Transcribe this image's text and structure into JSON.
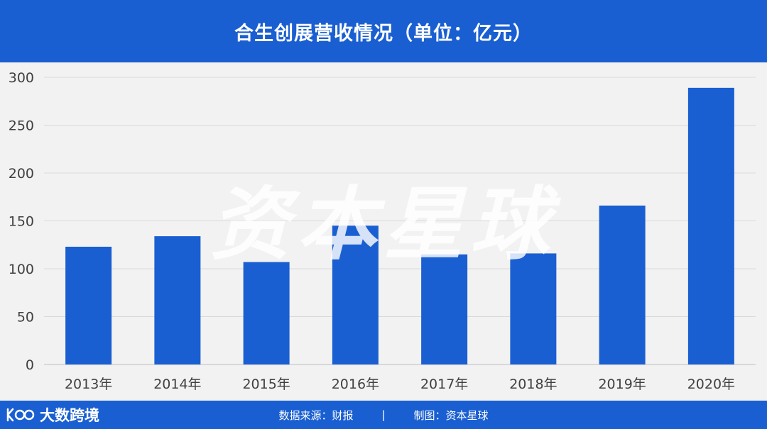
{
  "header": {
    "title": "合生创展营收情况（单位：亿元）"
  },
  "watermark": "资本星球",
  "footer": {
    "logo_text": "大数跨境",
    "source": "数据来源：财报",
    "separator": "|",
    "maker": "制图：资本星球"
  },
  "colors": {
    "bar": "#1a5fd1",
    "background": "#1a5fd1",
    "panel": "#f2f2f2",
    "grid": "#d9d9d9"
  },
  "chart_data": {
    "type": "bar",
    "title": "合生创展营收情况（单位：亿元）",
    "categories": [
      "2013年",
      "2014年",
      "2015年",
      "2016年",
      "2017年",
      "2018年",
      "2019年",
      "2020年"
    ],
    "values": [
      123,
      134,
      107,
      145,
      115,
      116,
      166,
      289
    ],
    "ylim": [
      0,
      300
    ],
    "yticks": [
      0,
      50,
      100,
      150,
      200,
      250,
      300
    ],
    "grid": true,
    "legend": "none"
  }
}
